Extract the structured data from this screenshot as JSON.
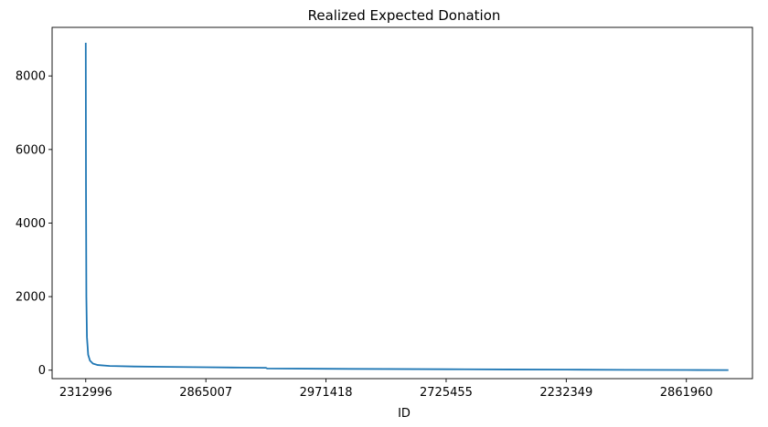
{
  "chart_data": {
    "type": "line",
    "title": "Realized Expected Donation",
    "xlabel": "ID",
    "ylabel": "",
    "x_tick_labels": [
      "2312996",
      "2865007",
      "2971418",
      "2725455",
      "2232349",
      "2861960"
    ],
    "y_ticks": [
      0,
      2000,
      4000,
      6000,
      8000
    ],
    "ylim": [
      -230,
      9320
    ],
    "xlim": [
      -0.28,
      5.55
    ],
    "grid": false,
    "legend": "none",
    "series": [
      {
        "color": "#1f77b4",
        "points": [
          [
            0.0,
            8900
          ],
          [
            0.002,
            5000
          ],
          [
            0.005,
            2000
          ],
          [
            0.01,
            900
          ],
          [
            0.02,
            420
          ],
          [
            0.035,
            260
          ],
          [
            0.06,
            180
          ],
          [
            0.1,
            140
          ],
          [
            0.2,
            115
          ],
          [
            0.4,
            100
          ],
          [
            0.7,
            90
          ],
          [
            1.0,
            80
          ],
          [
            1.3,
            70
          ],
          [
            1.5,
            65
          ],
          [
            1.51,
            45
          ],
          [
            2.0,
            38
          ],
          [
            2.5,
            32
          ],
          [
            3.0,
            26
          ],
          [
            3.5,
            20
          ],
          [
            4.0,
            14
          ],
          [
            4.5,
            9
          ],
          [
            5.0,
            5
          ],
          [
            5.35,
            2
          ]
        ]
      }
    ]
  }
}
